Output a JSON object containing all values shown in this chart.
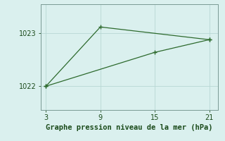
{
  "line1_x": [
    3,
    9,
    21
  ],
  "line1_y": [
    1022.0,
    1023.12,
    1022.88
  ],
  "line2_x": [
    3,
    15,
    21
  ],
  "line2_y": [
    1022.0,
    1022.64,
    1022.88
  ],
  "line_color": "#2d6a2d",
  "bg_color": "#daf0ee",
  "grid_color": "#b8d8d4",
  "spine_color": "#7a9a94",
  "xlabel": "Graphe pression niveau de la mer (hPa)",
  "xticks": [
    3,
    9,
    15,
    21
  ],
  "yticks": [
    1022,
    1023
  ],
  "xlim": [
    2.4,
    22.0
  ],
  "ylim": [
    1021.55,
    1023.55
  ],
  "xlabel_fontsize": 7.5,
  "tick_fontsize": 7,
  "tick_color": "#1a4a1a"
}
